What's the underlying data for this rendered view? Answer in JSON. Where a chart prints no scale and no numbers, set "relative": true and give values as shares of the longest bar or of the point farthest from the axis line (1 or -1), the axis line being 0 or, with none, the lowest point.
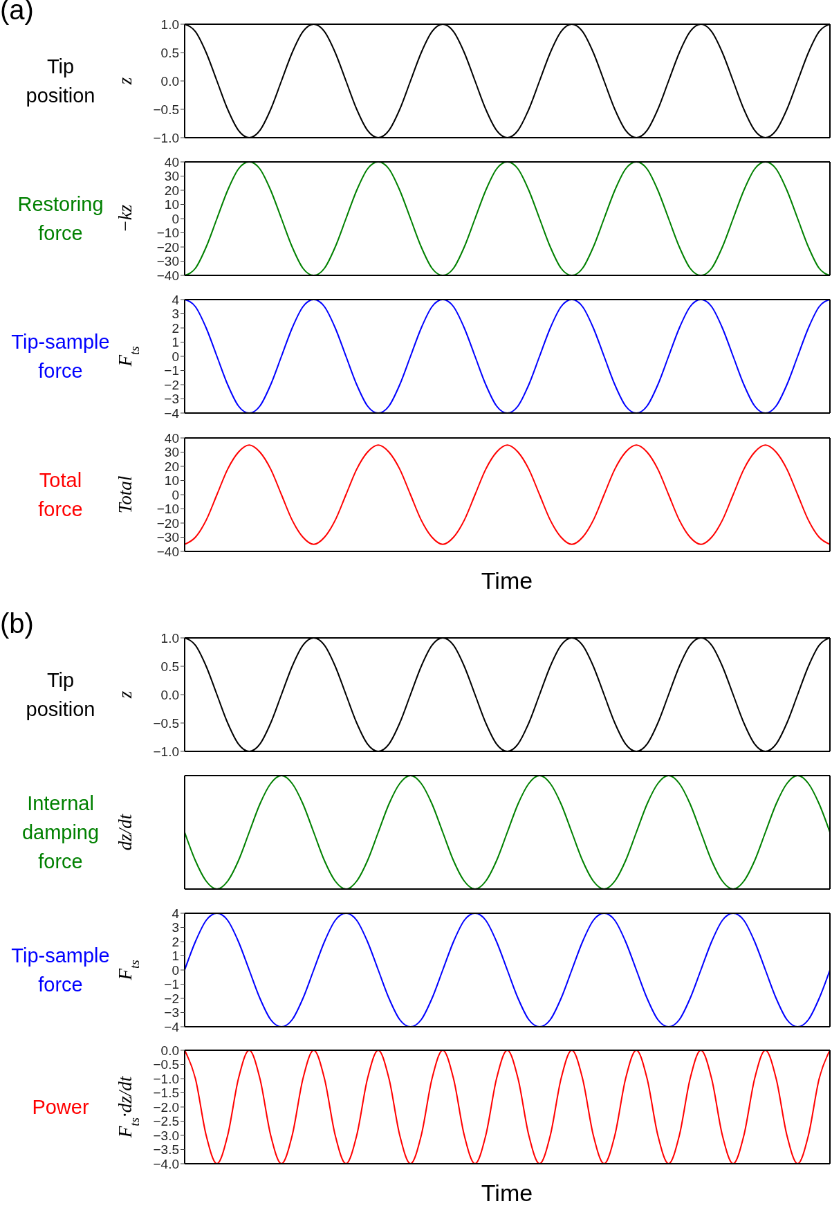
{
  "chart_data": [
    {
      "type": "line",
      "annotations": [
        "(a)"
      ],
      "ylabel": "z",
      "tick_labels": "y",
      "grid": false,
      "legend": false,
      "marker": "none",
      "line_style": "solid",
      "ylim": [
        -1,
        1
      ],
      "yticks": [
        {
          "value": -1,
          "label": "−1.0"
        },
        {
          "value": -0.5,
          "label": "−0.5"
        },
        {
          "value": 0,
          "label": "0.0"
        },
        {
          "value": 0.5,
          "label": "0.5"
        },
        {
          "value": 1,
          "label": "1.0"
        }
      ],
      "categories": [
        null,
        null,
        null,
        null,
        null,
        null,
        null,
        null,
        null,
        null,
        null,
        null,
        null,
        null,
        null,
        null,
        null,
        null,
        null,
        null,
        null,
        null,
        null,
        null,
        null,
        null,
        null,
        null,
        null,
        null,
        null,
        null,
        null,
        null,
        null,
        null,
        null,
        null,
        null,
        null,
        null,
        null,
        null,
        null,
        null,
        null,
        null,
        null,
        null,
        null,
        null,
        null,
        null,
        null,
        null,
        null,
        null,
        null,
        null,
        null,
        null
      ],
      "series": [
        {
          "name": "Tip position",
          "color": "#000000",
          "values": [
            1,
            0.87,
            0.5,
            0,
            -0.5,
            -0.87,
            -1,
            -0.87,
            -0.5,
            0,
            0.5,
            0.87,
            1,
            0.87,
            0.5,
            0,
            -0.5,
            -0.87,
            -1,
            -0.87,
            -0.5,
            0,
            0.5,
            0.87,
            1,
            0.87,
            0.5,
            0,
            -0.5,
            -0.87,
            -1,
            -0.87,
            -0.5,
            0,
            0.5,
            0.87,
            1,
            0.87,
            0.5,
            0,
            -0.5,
            -0.87,
            -1,
            -0.87,
            -0.5,
            0,
            0.5,
            0.87,
            1,
            0.87,
            0.5,
            0,
            -0.5,
            -0.87,
            -1,
            -0.87,
            -0.5,
            0,
            0.5,
            0.87,
            1
          ]
        }
      ]
    },
    {
      "type": "line",
      "ylabel": "−kz",
      "tick_labels": "y",
      "grid": false,
      "legend": false,
      "marker": "none",
      "line_style": "solid",
      "ylim": [
        -40,
        40
      ],
      "yticks": [
        {
          "value": -40,
          "label": "−40"
        },
        {
          "value": -30,
          "label": "−30"
        },
        {
          "value": -20,
          "label": "−20"
        },
        {
          "value": -10,
          "label": "−10"
        },
        0,
        10,
        20,
        30,
        40
      ],
      "categories": [
        null,
        null,
        null,
        null,
        null,
        null,
        null,
        null,
        null,
        null,
        null,
        null,
        null,
        null,
        null,
        null,
        null,
        null,
        null,
        null,
        null,
        null,
        null,
        null,
        null,
        null,
        null,
        null,
        null,
        null,
        null,
        null,
        null,
        null,
        null,
        null,
        null,
        null,
        null,
        null,
        null,
        null,
        null,
        null,
        null,
        null,
        null,
        null,
        null,
        null,
        null,
        null,
        null,
        null,
        null,
        null,
        null,
        null,
        null,
        null,
        null
      ],
      "series": [
        {
          "name": "Restoring force",
          "color": "#008000",
          "values": [
            -40,
            -35,
            -20,
            0,
            20,
            35,
            40,
            35,
            20,
            0,
            -20,
            -35,
            -40,
            -35,
            -20,
            0,
            20,
            35,
            40,
            35,
            20,
            0,
            -20,
            -35,
            -40,
            -35,
            -20,
            0,
            20,
            35,
            40,
            35,
            20,
            0,
            -20,
            -35,
            -40,
            -35,
            -20,
            0,
            20,
            35,
            40,
            35,
            20,
            0,
            -20,
            -35,
            -40,
            -35,
            -20,
            0,
            20,
            35,
            40,
            35,
            20,
            0,
            -20,
            -35,
            -40
          ]
        }
      ]
    },
    {
      "type": "line",
      "ylabel": "F$_{ts}$",
      "tick_labels": "y",
      "grid": false,
      "legend": false,
      "marker": "none",
      "line_style": "solid",
      "ylim": [
        -4,
        4
      ],
      "yticks": [
        {
          "value": -4,
          "label": "−4"
        },
        {
          "value": -3,
          "label": "−3"
        },
        {
          "value": -2,
          "label": "−2"
        },
        {
          "value": -1,
          "label": "−1"
        },
        0,
        1,
        2,
        3,
        4
      ],
      "categories": [
        null,
        null,
        null,
        null,
        null,
        null,
        null,
        null,
        null,
        null,
        null,
        null,
        null,
        null,
        null,
        null,
        null,
        null,
        null,
        null,
        null,
        null,
        null,
        null,
        null,
        null,
        null,
        null,
        null,
        null,
        null,
        null,
        null,
        null,
        null,
        null,
        null,
        null,
        null,
        null,
        null,
        null,
        null,
        null,
        null,
        null,
        null,
        null,
        null,
        null,
        null,
        null,
        null,
        null,
        null,
        null,
        null,
        null,
        null,
        null,
        null
      ],
      "series": [
        {
          "name": "Tip-sample force",
          "color": "#0000ff",
          "values": [
            4,
            3.5,
            2,
            0,
            -2,
            -3.5,
            -4,
            -3.5,
            -2,
            0,
            2,
            3.5,
            4,
            3.5,
            2,
            0,
            -2,
            -3.5,
            -4,
            -3.5,
            -2,
            0,
            2,
            3.5,
            4,
            3.5,
            2,
            0,
            -2,
            -3.5,
            -4,
            -3.5,
            -2,
            0,
            2,
            3.5,
            4,
            3.5,
            2,
            0,
            -2,
            -3.5,
            -4,
            -3.5,
            -2,
            0,
            2,
            3.5,
            4,
            3.5,
            2,
            0,
            -2,
            -3.5,
            -4,
            -3.5,
            -2,
            0,
            2,
            3.5,
            4
          ]
        }
      ]
    },
    {
      "type": "line",
      "ylabel": "Total",
      "xlabel": "Time",
      "tick_labels": "y",
      "grid": false,
      "legend": false,
      "marker": "none",
      "line_style": "solid",
      "ylim": [
        -40,
        40
      ],
      "yticks": [
        {
          "value": -40,
          "label": "−40"
        },
        {
          "value": -30,
          "label": "−30"
        },
        {
          "value": -20,
          "label": "−20"
        },
        {
          "value": -10,
          "label": "−10"
        },
        0,
        10,
        20,
        30,
        40
      ],
      "categories": [
        null,
        null,
        null,
        null,
        null,
        null,
        null,
        null,
        null,
        null,
        null,
        null,
        null,
        null,
        null,
        null,
        null,
        null,
        null,
        null,
        null,
        null,
        null,
        null,
        null,
        null,
        null,
        null,
        null,
        null,
        null,
        null,
        null,
        null,
        null,
        null,
        null,
        null,
        null,
        null,
        null,
        null,
        null,
        null,
        null,
        null,
        null,
        null,
        null,
        null,
        null,
        null,
        null,
        null,
        null,
        null,
        null,
        null,
        null,
        null,
        null
      ],
      "series": [
        {
          "name": "Total force",
          "color": "#ff0000",
          "values": [
            -35,
            -30,
            -18,
            0,
            18,
            30,
            35,
            30,
            18,
            0,
            -18,
            -30,
            -35,
            -30,
            -18,
            0,
            18,
            30,
            35,
            30,
            18,
            0,
            -18,
            -30,
            -35,
            -30,
            -18,
            0,
            18,
            30,
            35,
            30,
            18,
            0,
            -18,
            -30,
            -35,
            -30,
            -18,
            0,
            18,
            30,
            35,
            30,
            18,
            0,
            -18,
            -30,
            -35,
            -30,
            -18,
            0,
            18,
            30,
            35,
            30,
            18,
            0,
            -18,
            -30,
            -35
          ]
        }
      ]
    },
    {
      "type": "line",
      "annotations": [
        "(b)"
      ],
      "ylabel": "z",
      "tick_labels": "y",
      "grid": false,
      "legend": false,
      "marker": "none",
      "line_style": "solid",
      "ylim": [
        -1,
        1
      ],
      "yticks": [
        {
          "value": -1,
          "label": "−1.0"
        },
        {
          "value": -0.5,
          "label": "−0.5"
        },
        {
          "value": 0,
          "label": "0.0"
        },
        {
          "value": 0.5,
          "label": "0.5"
        },
        {
          "value": 1,
          "label": "1.0"
        }
      ],
      "categories": [
        null,
        null,
        null,
        null,
        null,
        null,
        null,
        null,
        null,
        null,
        null,
        null,
        null,
        null,
        null,
        null,
        null,
        null,
        null,
        null,
        null,
        null,
        null,
        null,
        null,
        null,
        null,
        null,
        null,
        null,
        null,
        null,
        null,
        null,
        null,
        null,
        null,
        null,
        null,
        null,
        null,
        null,
        null,
        null,
        null,
        null,
        null,
        null,
        null,
        null,
        null,
        null,
        null,
        null,
        null,
        null,
        null,
        null,
        null,
        null,
        null
      ],
      "series": [
        {
          "name": "Tip position",
          "color": "#000000",
          "values": [
            1,
            0.87,
            0.5,
            0,
            -0.5,
            -0.87,
            -1,
            -0.87,
            -0.5,
            0,
            0.5,
            0.87,
            1,
            0.87,
            0.5,
            0,
            -0.5,
            -0.87,
            -1,
            -0.87,
            -0.5,
            0,
            0.5,
            0.87,
            1,
            0.87,
            0.5,
            0,
            -0.5,
            -0.87,
            -1,
            -0.87,
            -0.5,
            0,
            0.5,
            0.87,
            1,
            0.87,
            0.5,
            0,
            -0.5,
            -0.87,
            -1,
            -0.87,
            -0.5,
            0,
            0.5,
            0.87,
            1,
            0.87,
            0.5,
            0,
            -0.5,
            -0.87,
            -1,
            -0.87,
            -0.5,
            0,
            0.5,
            0.87,
            1
          ]
        }
      ]
    },
    {
      "type": "line",
      "relative": true,
      "ylabel": "dz/dt",
      "tick_labels": false,
      "grid": false,
      "legend": false,
      "marker": "none",
      "line_style": "solid",
      "categories": [
        null,
        null,
        null,
        null,
        null,
        null,
        null,
        null,
        null,
        null,
        null,
        null,
        null,
        null,
        null,
        null,
        null,
        null,
        null,
        null,
        null,
        null,
        null,
        null,
        null,
        null,
        null,
        null,
        null,
        null,
        null,
        null,
        null,
        null,
        null,
        null,
        null,
        null,
        null,
        null,
        null,
        null,
        null,
        null,
        null,
        null,
        null,
        null,
        null,
        null,
        null,
        null,
        null,
        null,
        null,
        null,
        null,
        null,
        null,
        null,
        null
      ],
      "series": [
        {
          "name": "Internal damping force",
          "color": "#008000",
          "values": [
            0.5,
            0.25,
            0.07,
            0,
            0.07,
            0.25,
            0.5,
            0.75,
            0.93,
            1,
            0.93,
            0.75,
            0.5,
            0.25,
            0.07,
            0,
            0.07,
            0.25,
            0.5,
            0.75,
            0.93,
            1,
            0.93,
            0.75,
            0.5,
            0.25,
            0.07,
            0,
            0.07,
            0.25,
            0.5,
            0.75,
            0.93,
            1,
            0.93,
            0.75,
            0.5,
            0.25,
            0.07,
            0,
            0.07,
            0.25,
            0.5,
            0.75,
            0.93,
            1,
            0.93,
            0.75,
            0.5,
            0.25,
            0.07,
            0,
            0.07,
            0.25,
            0.5,
            0.75,
            0.93,
            1,
            0.93,
            0.75,
            0.5
          ]
        }
      ]
    },
    {
      "type": "line",
      "ylabel": "F$_{ts}$",
      "tick_labels": "y",
      "grid": false,
      "legend": false,
      "marker": "none",
      "line_style": "solid",
      "ylim": [
        -4,
        4
      ],
      "yticks": [
        {
          "value": -4,
          "label": "−4"
        },
        {
          "value": -3,
          "label": "−3"
        },
        {
          "value": -2,
          "label": "−2"
        },
        {
          "value": -1,
          "label": "−1"
        },
        0,
        1,
        2,
        3,
        4
      ],
      "categories": [
        null,
        null,
        null,
        null,
        null,
        null,
        null,
        null,
        null,
        null,
        null,
        null,
        null,
        null,
        null,
        null,
        null,
        null,
        null,
        null,
        null,
        null,
        null,
        null,
        null,
        null,
        null,
        null,
        null,
        null,
        null,
        null,
        null,
        null,
        null,
        null,
        null,
        null,
        null,
        null,
        null,
        null,
        null,
        null,
        null,
        null,
        null,
        null,
        null,
        null,
        null,
        null,
        null,
        null,
        null,
        null,
        null,
        null,
        null,
        null,
        null
      ],
      "series": [
        {
          "name": "Tip-sample force",
          "color": "#0000ff",
          "values": [
            0,
            2,
            3.5,
            4,
            3.5,
            2,
            0,
            -2,
            -3.5,
            -4,
            -3.5,
            -2,
            0,
            2,
            3.5,
            4,
            3.5,
            2,
            0,
            -2,
            -3.5,
            -4,
            -3.5,
            -2,
            0,
            2,
            3.5,
            4,
            3.5,
            2,
            0,
            -2,
            -3.5,
            -4,
            -3.5,
            -2,
            0,
            2,
            3.5,
            4,
            3.5,
            2,
            0,
            -2,
            -3.5,
            -4,
            -3.5,
            -2,
            0,
            2,
            3.5,
            4,
            3.5,
            2,
            0,
            -2,
            -3.5,
            -4,
            -3.5,
            -2,
            0
          ]
        }
      ]
    },
    {
      "type": "line",
      "ylabel": "F$_{ts}$·dz/dt",
      "xlabel": "Time",
      "tick_labels": "y",
      "grid": false,
      "legend": false,
      "marker": "none",
      "line_style": "solid",
      "ylim": [
        -4,
        0
      ],
      "yticks": [
        {
          "value": -4,
          "label": "−4.0"
        },
        {
          "value": -3.5,
          "label": "−3.5"
        },
        {
          "value": -3,
          "label": "−3.0"
        },
        {
          "value": -2.5,
          "label": "−2.5"
        },
        {
          "value": -2,
          "label": "−2.0"
        },
        {
          "value": -1.5,
          "label": "−1.5"
        },
        {
          "value": -1,
          "label": "−1.0"
        },
        {
          "value": -0.5,
          "label": "−0.5"
        },
        {
          "value": 0,
          "label": "0.0"
        }
      ],
      "categories": [
        null,
        null,
        null,
        null,
        null,
        null,
        null,
        null,
        null,
        null,
        null,
        null,
        null,
        null,
        null,
        null,
        null,
        null,
        null,
        null,
        null,
        null,
        null,
        null,
        null,
        null,
        null,
        null,
        null,
        null,
        null,
        null,
        null,
        null,
        null,
        null,
        null,
        null,
        null,
        null,
        null,
        null,
        null,
        null,
        null,
        null,
        null,
        null,
        null,
        null,
        null,
        null,
        null,
        null,
        null,
        null,
        null,
        null,
        null,
        null,
        null
      ],
      "series": [
        {
          "name": "Power",
          "color": "#ff0000",
          "values": [
            0,
            -1,
            -3,
            -4,
            -3,
            -1,
            0,
            -1,
            -3,
            -4,
            -3,
            -1,
            0,
            -1,
            -3,
            -4,
            -3,
            -1,
            0,
            -1,
            -3,
            -4,
            -3,
            -1,
            0,
            -1,
            -3,
            -4,
            -3,
            -1,
            0,
            -1,
            -3,
            -4,
            -3,
            -1,
            0,
            -1,
            -3,
            -4,
            -3,
            -1,
            0,
            -1,
            -3,
            -4,
            -3,
            -1,
            0,
            -1,
            -3,
            -4,
            -3,
            -1,
            0,
            -1,
            -3,
            -4,
            -3,
            -1,
            0
          ]
        }
      ]
    }
  ]
}
